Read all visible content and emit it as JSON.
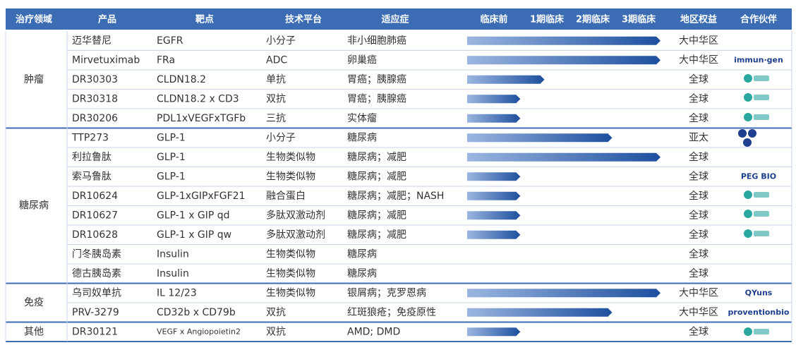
{
  "header": [
    "治疗领域",
    "产品",
    "靶点",
    "技术平台",
    "适应症",
    "临床前",
    "1期临床",
    "2期临床",
    "3期临床",
    "地区权益",
    "合作伙伴"
  ],
  "groups": [
    {
      "name": "肿瘤",
      "rows": [
        {
          "product": "迈华替尼",
          "target": "EGFR",
          "platform": "小分子",
          "indication": "非小细胞肺癌",
          "progress": 4,
          "region": "大中华区"
        },
        {
          "product": "Mirvetuximab",
          "target": "FRa",
          "platform": "ADC",
          "indication": "卵巢癌",
          "progress": 4,
          "region": "大中华区",
          "partner": "immun·gen"
        },
        {
          "product": "DR30303",
          "target": "CLDN18.2",
          "platform": "单抗",
          "indication": "胃癌；胰腺癌",
          "progress": 1.6,
          "region": "全球"
        },
        {
          "product": "DR30318",
          "target": "CLDN18.2 x CD3",
          "platform": "双抗",
          "indication": "胃癌；胰腺癌",
          "progress": 1.1,
          "region": "全球"
        },
        {
          "product": "DR30206",
          "target": "PDL1xVEGFxTGFb",
          "platform": "三抗",
          "indication": "实体瘤",
          "progress": 1.1,
          "region": "全球"
        }
      ]
    },
    {
      "name": "糖尿病",
      "rows": [
        {
          "product": "TTP273",
          "target": "GLP-1",
          "platform": "小分子",
          "indication": "糖尿病",
          "progress": 3,
          "region": "亚太"
        },
        {
          "product": "利拉鲁肽",
          "target": "GLP-1",
          "platform": "生物类似物",
          "indication": "糖尿病；减肥",
          "progress": 4,
          "region": "全球"
        },
        {
          "product": "索马鲁肽",
          "target": "GLP-1",
          "platform": "生物类似物",
          "indication": "糖尿病；减肥",
          "progress": 1.1,
          "region": "全球",
          "partner": "PEG BIO"
        },
        {
          "product": "DR10624",
          "target": "GLP-1xGIPxFGF21",
          "platform": "融合蛋白",
          "indication": "糖尿病；减肥；NASH",
          "progress": 1.1,
          "region": "全球"
        },
        {
          "product": "DR10627",
          "target": "GLP-1 x GIP qd",
          "platform": "多肽双激动剂",
          "indication": "糖尿病；减肥",
          "progress": 1.1,
          "region": "全球"
        },
        {
          "product": "DR10628",
          "target": "GLP-1 x GIP qw",
          "platform": "多肽双激动剂",
          "indication": "糖尿病；减肥",
          "progress": 1.1,
          "region": "全球"
        },
        {
          "product": "门冬胰岛素",
          "target": "Insulin",
          "platform": "生物类似物",
          "indication": "糖尿病",
          "progress": null,
          "region": "全球"
        },
        {
          "product": "德古胰岛素",
          "target": "Insulin",
          "platform": "生物类似物",
          "indication": "糖尿病",
          "progress": null,
          "region": "全球"
        }
      ]
    },
    {
      "name": "免疫",
      "rows": [
        {
          "product": "乌司奴单抗",
          "target": "IL 12/23",
          "platform": "生物类似物",
          "indication": "银屑病；克罗恩病",
          "progress": 4,
          "region": "大中华区",
          "partner": "QYuns"
        },
        {
          "product": "PRV-3279",
          "target": "CD32b x CD79b",
          "platform": "双抗",
          "indication": "红斑狼疮；免疫原性",
          "progress": 3,
          "region": "大中华区",
          "partner": "proventionbio"
        }
      ]
    },
    {
      "name": "其他",
      "rows": [
        {
          "product": "DR30121",
          "target": "VEGF x Angiopoietin2",
          "platform": "双抗",
          "indication": "AMD; DMD",
          "progress": 1.1,
          "region": "全球"
        }
      ]
    }
  ]
}
